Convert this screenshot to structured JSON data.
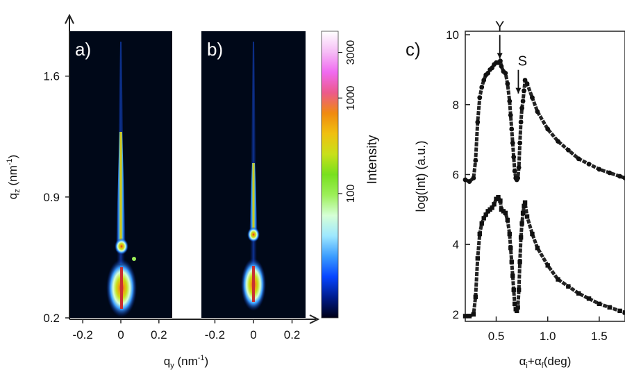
{
  "chart_data": [
    {
      "type": "heatmap",
      "panels": [
        {
          "label": "a)",
          "xlim": [
            -0.27,
            0.27
          ]
        },
        {
          "label": "b)",
          "xlim": [
            -0.27,
            0.27
          ]
        }
      ],
      "xlabel": {
        "base": "q",
        "sub": "y",
        "unit_open": " (nm",
        "sup": "-1",
        "unit_close": ")"
      },
      "ylabel": {
        "base": "q",
        "sub": "z",
        "unit_open": " (nm",
        "sup": "-1",
        "unit_close": ")"
      },
      "ylim": [
        0.2,
        1.86
      ],
      "xticks": [
        "-0.2",
        "0",
        "0.2"
      ],
      "yticks": [
        "0.2",
        "0.9",
        "1.6"
      ],
      "colorbar": {
        "label": "Intensity",
        "scale": "log",
        "range": [
          5,
          5000
        ],
        "ticks": [
          "100",
          "1000",
          "3000"
        ],
        "colormap": [
          "#000015",
          "#001c8c",
          "#0645ff",
          "#3a9cff",
          "#9ee8ff",
          "#d6ffd6",
          "#9cef58",
          "#78e01e",
          "#c8e01a",
          "#f0c010",
          "#f08a10",
          "#ec5a8c",
          "#f06af0",
          "#f6bef6",
          "#ffffff"
        ]
      }
    },
    {
      "type": "scatter",
      "panel_label": "c)",
      "xlabel": {
        "a1": "α",
        "s1": "i",
        "plus": "+",
        "a2": "α",
        "s2": "f",
        "unit": "(deg)"
      },
      "ylabel": "log(Int) (a.u.)",
      "xlim": [
        0.2,
        1.75
      ],
      "ylim": [
        1.8,
        10.1
      ],
      "xticks": [
        "0.5",
        "1.0",
        "1.5"
      ],
      "yticks": [
        "2",
        "4",
        "6",
        "8",
        "10"
      ],
      "annotations": [
        {
          "text": "Y",
          "x": 0.535,
          "y": 9.2
        },
        {
          "text": "S",
          "x": 0.715,
          "y": 8.2
        }
      ],
      "series": [
        {
          "marker": "circle",
          "x": [
            0.2,
            0.24,
            0.28,
            0.3,
            0.32,
            0.34,
            0.36,
            0.38,
            0.4,
            0.42,
            0.44,
            0.46,
            0.48,
            0.5,
            0.52,
            0.54,
            0.55,
            0.57,
            0.59,
            0.61,
            0.63,
            0.64,
            0.65,
            0.66,
            0.67,
            0.68,
            0.69,
            0.7,
            0.71,
            0.72,
            0.73,
            0.74,
            0.75,
            0.76,
            0.77,
            0.78,
            0.8,
            0.85,
            0.9,
            1.0,
            1.1,
            1.2,
            1.3,
            1.4,
            1.5,
            1.6,
            1.7,
            1.75
          ],
          "y": [
            5.85,
            5.8,
            5.9,
            6.4,
            7.5,
            8.2,
            8.5,
            8.7,
            8.85,
            8.9,
            9.0,
            9.05,
            9.15,
            9.2,
            9.2,
            9.25,
            9.1,
            8.95,
            8.9,
            8.6,
            8.1,
            7.7,
            7.3,
            6.9,
            6.5,
            6.1,
            5.9,
            5.85,
            5.9,
            6.2,
            6.9,
            7.5,
            7.9,
            8.1,
            8.4,
            8.7,
            8.6,
            8.2,
            7.8,
            7.3,
            6.95,
            6.7,
            6.45,
            6.3,
            6.15,
            6.05,
            5.95,
            5.9
          ]
        },
        {
          "marker": "square",
          "x": [
            0.2,
            0.24,
            0.28,
            0.3,
            0.32,
            0.34,
            0.36,
            0.38,
            0.4,
            0.42,
            0.44,
            0.46,
            0.48,
            0.5,
            0.52,
            0.54,
            0.55,
            0.57,
            0.59,
            0.61,
            0.63,
            0.64,
            0.65,
            0.66,
            0.67,
            0.68,
            0.69,
            0.7,
            0.71,
            0.72,
            0.73,
            0.74,
            0.75,
            0.76,
            0.77,
            0.78,
            0.8,
            0.85,
            0.9,
            1.0,
            1.1,
            1.2,
            1.3,
            1.4,
            1.5,
            1.6,
            1.7,
            1.75
          ],
          "y": [
            1.95,
            1.95,
            2.0,
            2.5,
            3.6,
            4.3,
            4.6,
            4.75,
            4.85,
            4.95,
            5.0,
            5.05,
            5.15,
            5.3,
            5.35,
            5.25,
            5.0,
            4.95,
            4.9,
            4.7,
            4.3,
            3.9,
            3.5,
            3.1,
            2.7,
            2.3,
            2.15,
            2.1,
            2.2,
            2.7,
            3.5,
            4.2,
            4.6,
            4.9,
            5.1,
            5.2,
            4.8,
            4.3,
            3.9,
            3.4,
            3.0,
            2.8,
            2.6,
            2.45,
            2.3,
            2.2,
            2.1,
            2.05
          ]
        }
      ]
    }
  ]
}
